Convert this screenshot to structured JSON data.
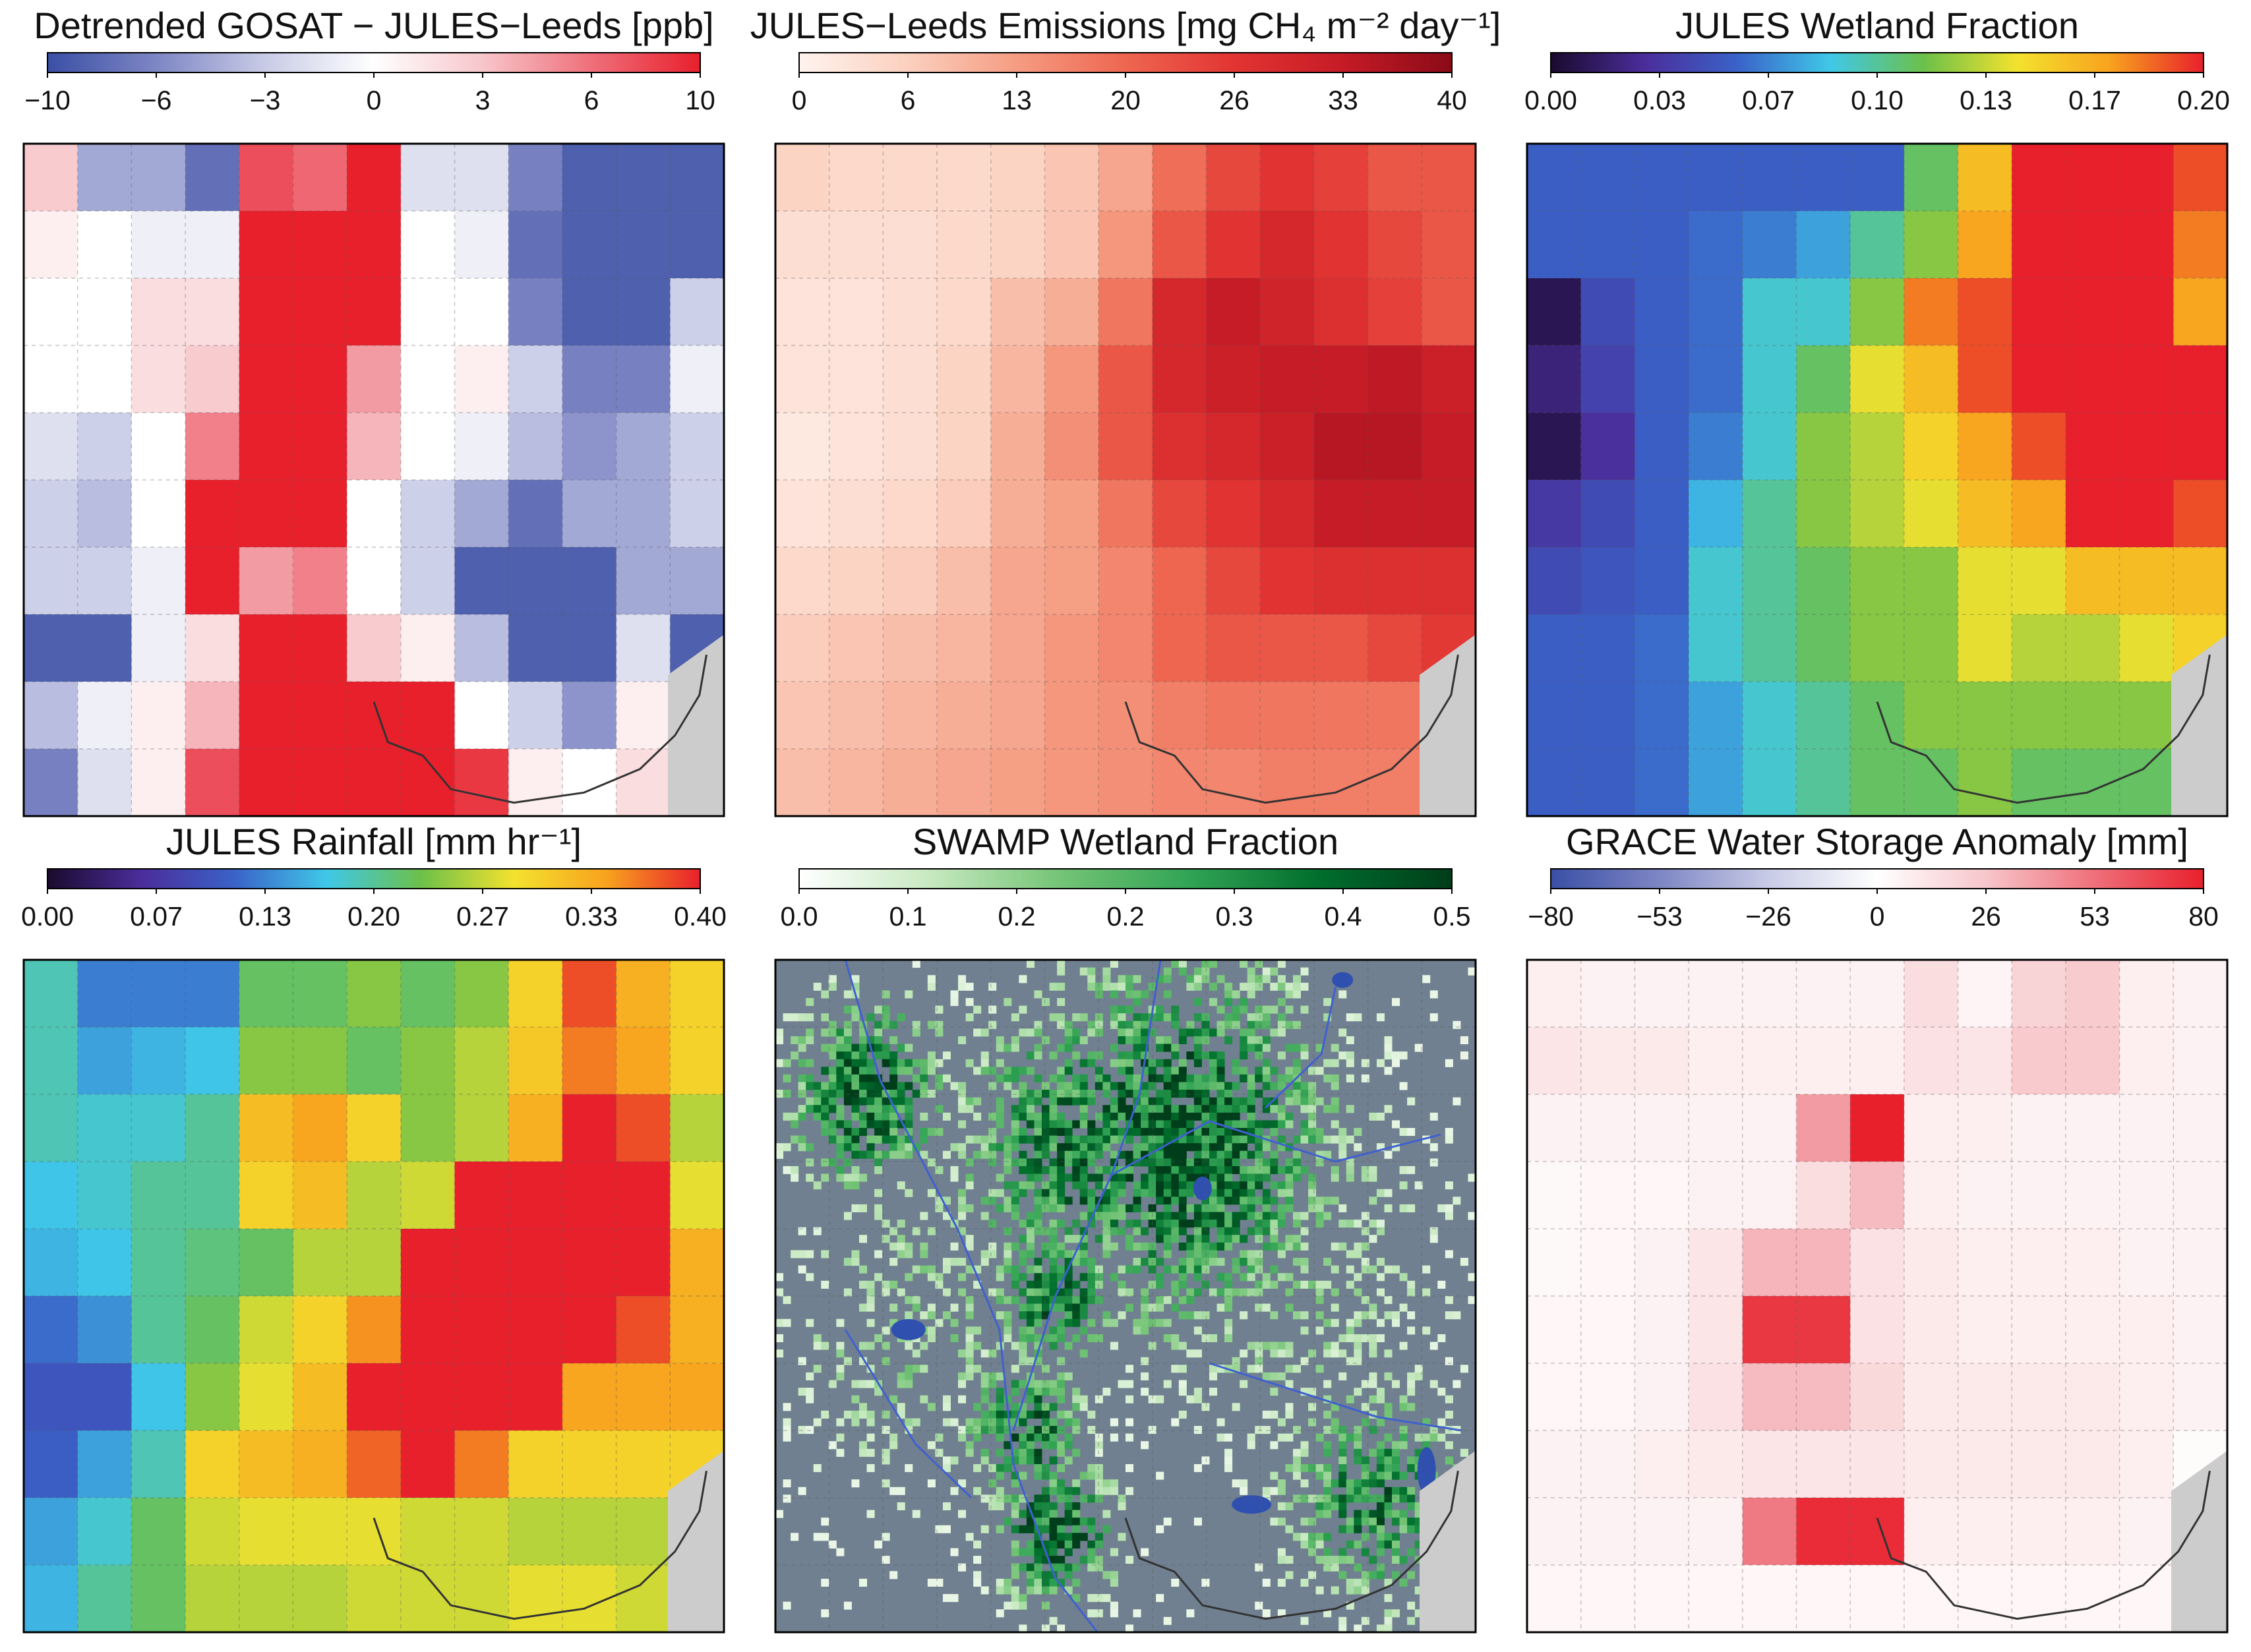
{
  "figure": {
    "grid_rows": 10,
    "grid_cols": 13,
    "land_color": "#708090",
    "coast_fill": "#cccccc",
    "river_color": "#4060d0",
    "lake_color": "#3050b0"
  },
  "chart_data": [
    {
      "id": "gosat_diff",
      "type": "heatmap",
      "title": "Detrended GOSAT − JULES−Leeds [ppb]",
      "colorbar": {
        "ticks": [
          "−10",
          "−6",
          "−3",
          "0",
          "3",
          "6",
          "10"
        ],
        "vmin": -10,
        "vmax": 10,
        "colors": [
          "#3a4fa5",
          "#7e86c4",
          "#c8cbe6",
          "#ffffff",
          "#f7c6ca",
          "#ef6f7a",
          "#e8202c"
        ]
      },
      "grid": [
        [
          3,
          -5,
          -5,
          -8,
          8,
          7,
          10,
          -2,
          -2,
          -7,
          -9,
          -9,
          -9
        ],
        [
          1,
          0,
          -1,
          -1,
          10,
          10,
          10,
          0,
          -1,
          -8,
          -9,
          -9,
          -9
        ],
        [
          0,
          0,
          2,
          2,
          10,
          10,
          10,
          0,
          0,
          -7,
          -9,
          -9,
          -3
        ],
        [
          0,
          0,
          2,
          3,
          10,
          10,
          5,
          0,
          1,
          -3,
          -7,
          -7,
          -1
        ],
        [
          -2,
          -3,
          0,
          6,
          10,
          10,
          4,
          0,
          -1,
          -4,
          -6,
          -5,
          -3
        ],
        [
          -3,
          -4,
          0,
          10,
          10,
          10,
          0,
          -3,
          -5,
          -8,
          -5,
          -5,
          -3
        ],
        [
          -3,
          -3,
          -1,
          10,
          5,
          6,
          0,
          -3,
          -9,
          -9,
          -9,
          -5,
          -5
        ],
        [
          -9,
          -9,
          -1,
          2,
          10,
          10,
          3,
          1,
          -4,
          -9,
          -9,
          -2,
          -9
        ],
        [
          -4,
          -1,
          1,
          4,
          10,
          10,
          10,
          10,
          0,
          -3,
          -6,
          1,
          0
        ],
        [
          -7,
          -2,
          1,
          8,
          10,
          10,
          10,
          10,
          9,
          1,
          0,
          2,
          0
        ]
      ]
    },
    {
      "id": "jules_emissions",
      "type": "heatmap",
      "title": "JULES−Leeds Emissions [mg CH₄ m⁻² day⁻¹]",
      "colorbar": {
        "ticks": [
          "0",
          "6",
          "13",
          "20",
          "26",
          "33",
          "40"
        ],
        "vmin": 0,
        "vmax": 40,
        "colors": [
          "#fff3ee",
          "#fbd0bf",
          "#f59c82",
          "#ee6650",
          "#e23432",
          "#c51b26",
          "#8b0a18"
        ]
      },
      "grid": [
        [
          6,
          5,
          5,
          5,
          6,
          8,
          12,
          19,
          24,
          27,
          25,
          22,
          22
        ],
        [
          4,
          4,
          4,
          5,
          6,
          8,
          14,
          22,
          27,
          30,
          27,
          24,
          22
        ],
        [
          3,
          3,
          4,
          5,
          9,
          11,
          18,
          30,
          33,
          31,
          28,
          25,
          22
        ],
        [
          3,
          3,
          4,
          6,
          10,
          14,
          22,
          30,
          32,
          33,
          33,
          34,
          32
        ],
        [
          2,
          3,
          4,
          6,
          11,
          15,
          22,
          28,
          30,
          32,
          35,
          35,
          33
        ],
        [
          3,
          4,
          5,
          7,
          11,
          13,
          18,
          24,
          27,
          30,
          33,
          33,
          33
        ],
        [
          5,
          6,
          7,
          9,
          12,
          13,
          16,
          20,
          24,
          27,
          28,
          28,
          28
        ],
        [
          7,
          8,
          9,
          10,
          12,
          14,
          16,
          20,
          22,
          22,
          22,
          24,
          26
        ],
        [
          8,
          9,
          10,
          11,
          12,
          14,
          15,
          17,
          18,
          18,
          18,
          18,
          20
        ],
        [
          9,
          10,
          11,
          12,
          13,
          14,
          15,
          16,
          16,
          17,
          17,
          17,
          17
        ]
      ]
    },
    {
      "id": "jules_wetland",
      "type": "heatmap",
      "title": "JULES Wetland Fraction",
      "colorbar": {
        "ticks": [
          "0.00",
          "0.03",
          "0.07",
          "0.10",
          "0.13",
          "0.17",
          "0.20"
        ],
        "vmin": 0,
        "vmax": 0.2,
        "colors": [
          "#1a0a2e",
          "#4b2d9a",
          "#3a62c8",
          "#3fc8e8",
          "#6cc04a",
          "#f3e22e",
          "#f8a21e",
          "#e8202c"
        ]
      },
      "grid": [
        [
          0.055,
          0.055,
          0.055,
          0.055,
          0.055,
          0.055,
          0.055,
          0.11,
          0.16,
          0.2,
          0.2,
          0.2,
          0.19
        ],
        [
          0.055,
          0.055,
          0.055,
          0.06,
          0.065,
          0.075,
          0.1,
          0.12,
          0.17,
          0.2,
          0.2,
          0.2,
          0.18
        ],
        [
          0.01,
          0.045,
          0.055,
          0.06,
          0.09,
          0.09,
          0.12,
          0.18,
          0.19,
          0.2,
          0.2,
          0.2,
          0.17
        ],
        [
          0.02,
          0.04,
          0.055,
          0.06,
          0.09,
          0.11,
          0.14,
          0.16,
          0.19,
          0.2,
          0.2,
          0.2,
          0.2
        ],
        [
          0.01,
          0.03,
          0.055,
          0.065,
          0.09,
          0.12,
          0.13,
          0.15,
          0.17,
          0.19,
          0.2,
          0.2,
          0.2
        ],
        [
          0.035,
          0.045,
          0.055,
          0.08,
          0.1,
          0.12,
          0.13,
          0.14,
          0.16,
          0.17,
          0.2,
          0.2,
          0.19
        ],
        [
          0.045,
          0.05,
          0.055,
          0.09,
          0.1,
          0.11,
          0.12,
          0.12,
          0.14,
          0.14,
          0.16,
          0.16,
          0.16
        ],
        [
          0.055,
          0.055,
          0.06,
          0.09,
          0.1,
          0.11,
          0.12,
          0.12,
          0.14,
          0.13,
          0.13,
          0.14,
          0.15
        ],
        [
          0.055,
          0.055,
          0.06,
          0.075,
          0.09,
          0.1,
          0.11,
          0.12,
          0.12,
          0.12,
          0.12,
          0.12,
          0.12
        ],
        [
          0.055,
          0.055,
          0.06,
          0.075,
          0.09,
          0.1,
          0.11,
          0.11,
          0.12,
          0.11,
          0.11,
          0.11,
          0.11
        ]
      ]
    },
    {
      "id": "jules_rainfall",
      "type": "heatmap",
      "title": "JULES Rainfall [mm hr⁻¹]",
      "colorbar": {
        "ticks": [
          "0.00",
          "0.07",
          "0.13",
          "0.20",
          "0.27",
          "0.33",
          "0.40"
        ],
        "vmin": 0,
        "vmax": 0.4,
        "colors": [
          "#1a0a2e",
          "#4b2d9a",
          "#3a62c8",
          "#3fc8e8",
          "#6cc04a",
          "#f3e22e",
          "#f8a21e",
          "#e8202c"
        ]
      },
      "grid": [
        [
          0.19,
          0.13,
          0.13,
          0.13,
          0.22,
          0.22,
          0.24,
          0.22,
          0.24,
          0.3,
          0.38,
          0.33,
          0.3
        ],
        [
          0.19,
          0.15,
          0.16,
          0.17,
          0.24,
          0.24,
          0.22,
          0.24,
          0.26,
          0.31,
          0.36,
          0.34,
          0.3
        ],
        [
          0.19,
          0.18,
          0.18,
          0.2,
          0.32,
          0.34,
          0.3,
          0.24,
          0.26,
          0.33,
          0.4,
          0.38,
          0.26
        ],
        [
          0.17,
          0.18,
          0.2,
          0.2,
          0.3,
          0.32,
          0.26,
          0.27,
          0.4,
          0.4,
          0.4,
          0.4,
          0.28
        ],
        [
          0.16,
          0.17,
          0.2,
          0.21,
          0.22,
          0.26,
          0.26,
          0.4,
          0.4,
          0.4,
          0.4,
          0.4,
          0.33
        ],
        [
          0.12,
          0.14,
          0.2,
          0.22,
          0.27,
          0.3,
          0.35,
          0.4,
          0.4,
          0.4,
          0.4,
          0.38,
          0.33
        ],
        [
          0.1,
          0.1,
          0.17,
          0.24,
          0.28,
          0.32,
          0.4,
          0.4,
          0.4,
          0.4,
          0.34,
          0.34,
          0.34
        ],
        [
          0.11,
          0.15,
          0.19,
          0.3,
          0.32,
          0.33,
          0.37,
          0.4,
          0.36,
          0.3,
          0.3,
          0.3,
          0.3
        ],
        [
          0.15,
          0.18,
          0.22,
          0.27,
          0.28,
          0.28,
          0.28,
          0.27,
          0.27,
          0.26,
          0.26,
          0.26,
          0.26
        ],
        [
          0.16,
          0.2,
          0.22,
          0.26,
          0.26,
          0.26,
          0.27,
          0.27,
          0.27,
          0.28,
          0.28,
          0.27,
          0.26
        ]
      ]
    },
    {
      "id": "swamp_wetland",
      "type": "heatmap",
      "title": "SWAMP Wetland Fraction",
      "colorbar": {
        "ticks": [
          "0.0",
          "0.1",
          "0.2",
          "0.2",
          "0.3",
          "0.4",
          "0.5"
        ],
        "vmin": 0,
        "vmax": 0.5,
        "colors": [
          "#ffffff",
          "#c7e9c0",
          "#74c476",
          "#31a354",
          "#006d2c",
          "#003d1a"
        ]
      },
      "rendering": "fine-resolution wetland map over grey land with rivers and lakes"
    },
    {
      "id": "grace_anomaly",
      "type": "heatmap",
      "title": "GRACE Water Storage Anomaly [mm]",
      "colorbar": {
        "ticks": [
          "−80",
          "−53",
          "−26",
          "0",
          "26",
          "53",
          "80"
        ],
        "vmin": -80,
        "vmax": 80,
        "colors": [
          "#3a4fa5",
          "#7e86c4",
          "#c8cbe6",
          "#ffffff",
          "#f7c6ca",
          "#ef6f7a",
          "#e8202c"
        ]
      },
      "grid": [
        [
          8,
          6,
          6,
          6,
          6,
          6,
          6,
          16,
          5,
          20,
          24,
          8,
          6
        ],
        [
          12,
          10,
          10,
          8,
          8,
          8,
          8,
          14,
          12,
          25,
          25,
          8,
          6
        ],
        [
          6,
          6,
          6,
          6,
          6,
          40,
          80,
          8,
          8,
          6,
          6,
          6,
          6
        ],
        [
          3,
          4,
          4,
          6,
          6,
          16,
          30,
          8,
          6,
          6,
          6,
          6,
          6
        ],
        [
          3,
          4,
          6,
          12,
          32,
          32,
          14,
          10,
          8,
          8,
          8,
          6,
          6
        ],
        [
          4,
          4,
          6,
          12,
          72,
          72,
          14,
          10,
          8,
          8,
          8,
          8,
          6
        ],
        [
          4,
          4,
          6,
          14,
          30,
          30,
          18,
          10,
          10,
          10,
          10,
          8,
          6
        ],
        [
          6,
          6,
          8,
          10,
          12,
          12,
          12,
          10,
          10,
          10,
          10,
          8,
          2
        ],
        [
          6,
          6,
          6,
          6,
          50,
          76,
          76,
          8,
          8,
          8,
          8,
          6,
          6
        ],
        [
          4,
          4,
          4,
          4,
          4,
          4,
          4,
          4,
          4,
          4,
          4,
          4,
          4
        ]
      ]
    }
  ]
}
